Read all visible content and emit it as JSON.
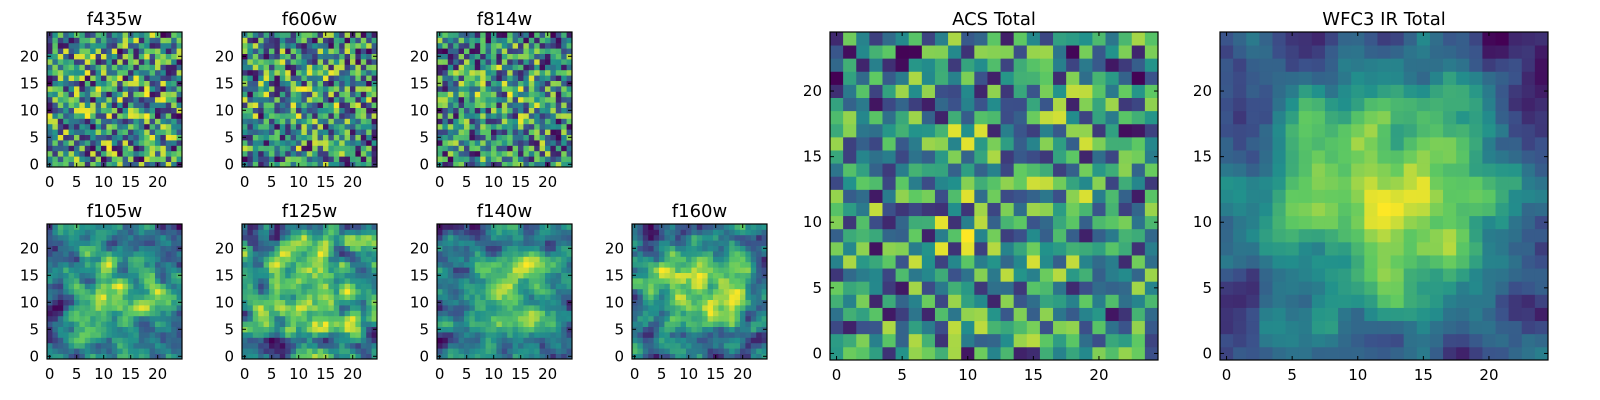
{
  "figure": {
    "background": "#ffffff"
  },
  "colormap": {
    "name": "viridis",
    "stops": [
      "#440154",
      "#3b528b",
      "#21918c",
      "#5ec962",
      "#fde725"
    ]
  },
  "chart_data": [
    {
      "type": "heatmap",
      "title": "f435w",
      "grid_size": 25,
      "x_ticks": [
        0,
        5,
        10,
        15,
        20
      ],
      "y_ticks": [
        0,
        5,
        10,
        15,
        20
      ],
      "xlim": [
        -0.5,
        24.5
      ],
      "ylim": [
        -0.5,
        24.5
      ],
      "center_strength": 0.05,
      "seed": 435,
      "noise": 0.5,
      "smooth": false
    },
    {
      "type": "heatmap",
      "title": "f606w",
      "grid_size": 25,
      "x_ticks": [
        0,
        5,
        10,
        15,
        20
      ],
      "y_ticks": [
        0,
        5,
        10,
        15,
        20
      ],
      "xlim": [
        -0.5,
        24.5
      ],
      "ylim": [
        -0.5,
        24.5
      ],
      "center_strength": 0.08,
      "seed": 606,
      "noise": 0.5,
      "smooth": false
    },
    {
      "type": "heatmap",
      "title": "f814w",
      "grid_size": 25,
      "x_ticks": [
        0,
        5,
        10,
        15,
        20
      ],
      "y_ticks": [
        0,
        5,
        10,
        15,
        20
      ],
      "xlim": [
        -0.5,
        24.5
      ],
      "ylim": [
        -0.5,
        24.5
      ],
      "center_strength": 0.12,
      "seed": 814,
      "noise": 0.45,
      "smooth": false
    },
    {
      "type": "heatmap",
      "title": "f105w",
      "grid_size": 25,
      "x_ticks": [
        0,
        5,
        10,
        15,
        20
      ],
      "y_ticks": [
        0,
        5,
        10,
        15,
        20
      ],
      "xlim": [
        -0.5,
        24.5
      ],
      "ylim": [
        -0.5,
        24.5
      ],
      "center_strength": 0.2,
      "seed": 105,
      "noise": 0.35,
      "smooth": true
    },
    {
      "type": "heatmap",
      "title": "f125w",
      "grid_size": 25,
      "x_ticks": [
        0,
        5,
        10,
        15,
        20
      ],
      "y_ticks": [
        0,
        5,
        10,
        15,
        20
      ],
      "xlim": [
        -0.5,
        24.5
      ],
      "ylim": [
        -0.5,
        24.5
      ],
      "center_strength": 0.2,
      "seed": 125,
      "noise": 0.35,
      "smooth": true
    },
    {
      "type": "heatmap",
      "title": "f140w",
      "grid_size": 25,
      "x_ticks": [
        0,
        5,
        10,
        15,
        20
      ],
      "y_ticks": [
        0,
        5,
        10,
        15,
        20
      ],
      "xlim": [
        -0.5,
        24.5
      ],
      "ylim": [
        -0.5,
        24.5
      ],
      "center_strength": 0.25,
      "seed": 140,
      "noise": 0.35,
      "smooth": true
    },
    {
      "type": "heatmap",
      "title": "f160w",
      "grid_size": 25,
      "x_ticks": [
        0,
        5,
        10,
        15,
        20
      ],
      "y_ticks": [
        0,
        5,
        10,
        15,
        20
      ],
      "xlim": [
        -0.5,
        24.5
      ],
      "ylim": [
        -0.5,
        24.5
      ],
      "center_strength": 0.3,
      "seed": 160,
      "noise": 0.3,
      "smooth": true
    },
    {
      "type": "heatmap",
      "title": "ACS Total",
      "grid_size": 25,
      "x_ticks": [
        0,
        5,
        10,
        15,
        20
      ],
      "y_ticks": [
        0,
        5,
        10,
        15,
        20
      ],
      "xlim": [
        -0.5,
        24.5
      ],
      "ylim": [
        -0.5,
        24.5
      ],
      "center_strength": 0.15,
      "seed": 999,
      "noise": 0.38,
      "smooth": false
    },
    {
      "type": "heatmap",
      "title": "WFC3 IR Total",
      "grid_size": 25,
      "x_ticks": [
        0,
        5,
        10,
        15,
        20
      ],
      "y_ticks": [
        0,
        5,
        10,
        15,
        20
      ],
      "xlim": [
        -0.5,
        24.5
      ],
      "ylim": [
        -0.5,
        24.5
      ],
      "center_strength": 0.45,
      "seed": 314,
      "noise": 0.22,
      "smooth": true
    }
  ]
}
